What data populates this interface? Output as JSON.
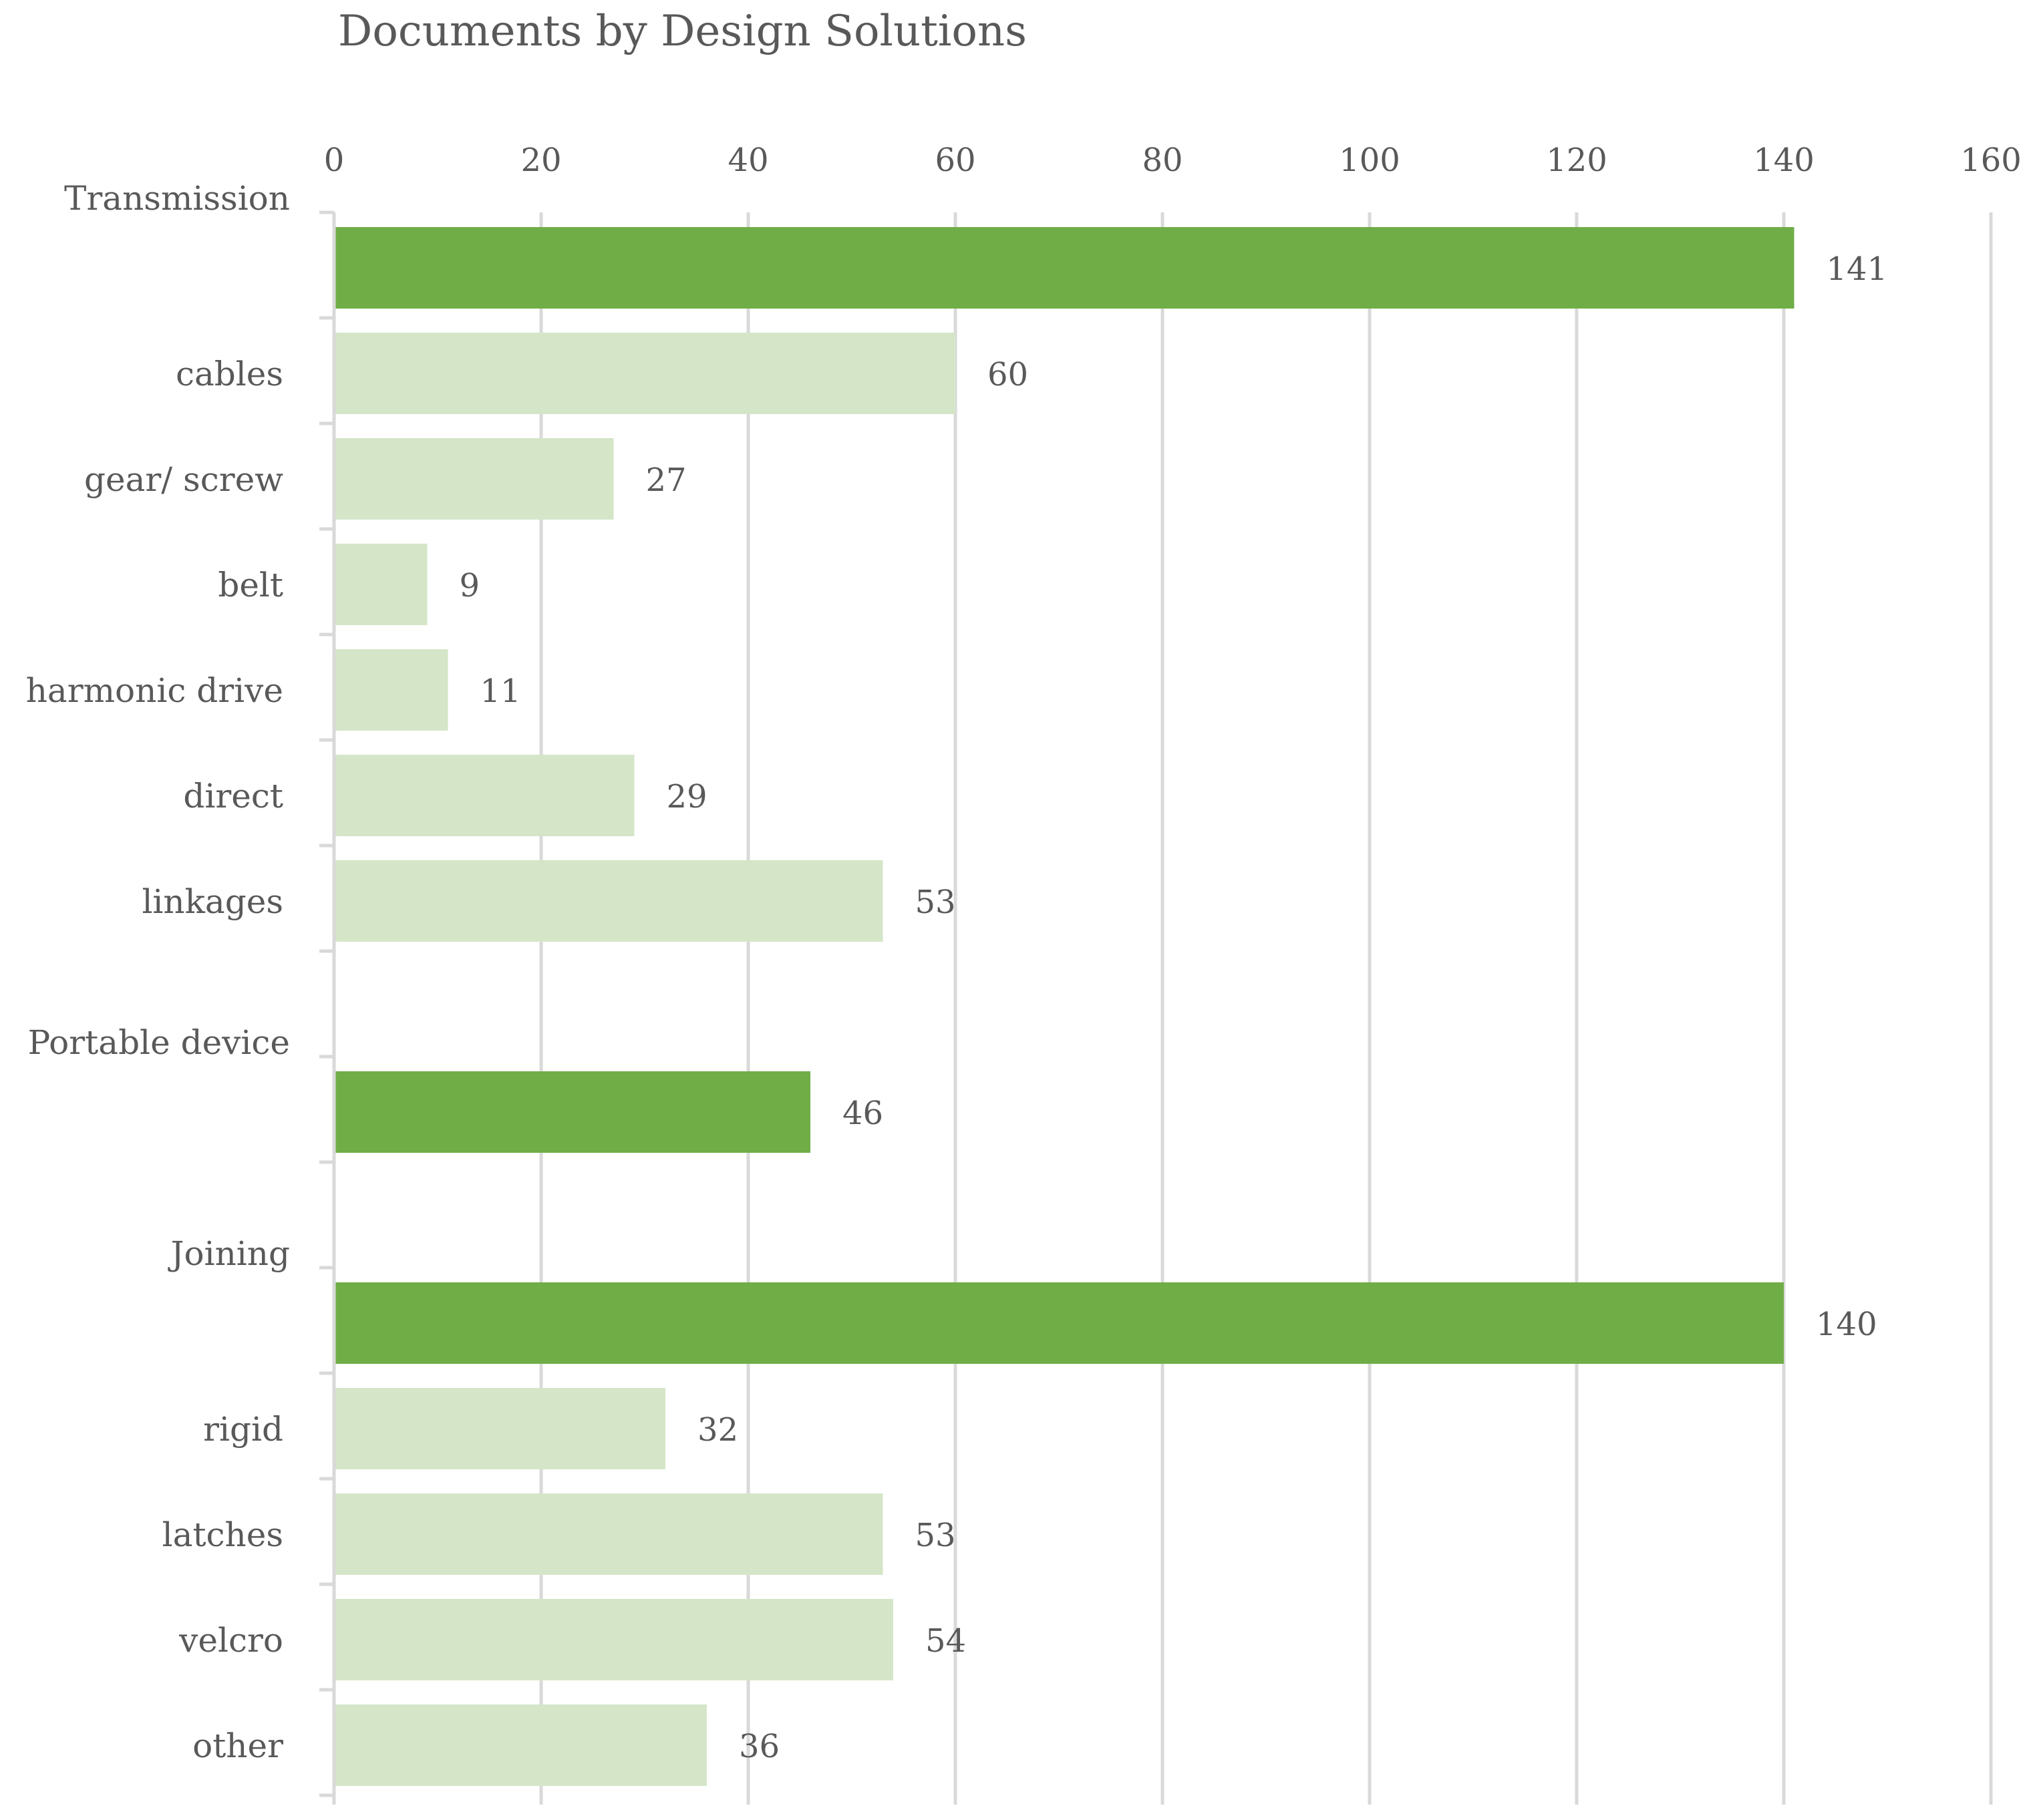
{
  "chart_data": {
    "type": "bar",
    "orientation": "horizontal",
    "title": "Documents by Design Solutions",
    "xlabel": "",
    "ylabel": "",
    "xlim": [
      0,
      160
    ],
    "x_ticks": [
      0,
      20,
      40,
      60,
      80,
      100,
      120,
      140,
      160
    ],
    "x_tick_labels": [
      "0",
      "20",
      "40",
      "60",
      "80",
      "100",
      "120",
      "140",
      "160"
    ],
    "axis_position": "top",
    "grid": true,
    "legend": "none",
    "categories": [
      "Transmission",
      "cables",
      "gear/ screw",
      "belt",
      "harmonic drive",
      "direct",
      "linkages",
      "",
      "Portable device",
      "",
      "Joining",
      "rigid",
      "latches",
      "velcro",
      "other"
    ],
    "values": [
      141,
      60,
      27,
      9,
      11,
      29,
      53,
      null,
      46,
      null,
      140,
      32,
      53,
      54,
      36
    ],
    "value_labels": [
      "141",
      "60",
      "27",
      "9",
      "11",
      "29",
      "53",
      "",
      "46",
      "",
      "140",
      "32",
      "53",
      "54",
      "36"
    ],
    "highlight": [
      true,
      false,
      false,
      false,
      false,
      false,
      false,
      false,
      true,
      false,
      true,
      false,
      false,
      false,
      false
    ],
    "colors": {
      "highlight": "#70AD47",
      "normal": "#D5E6C8",
      "grid": "#D9D9D9",
      "text": "#595959"
    }
  }
}
